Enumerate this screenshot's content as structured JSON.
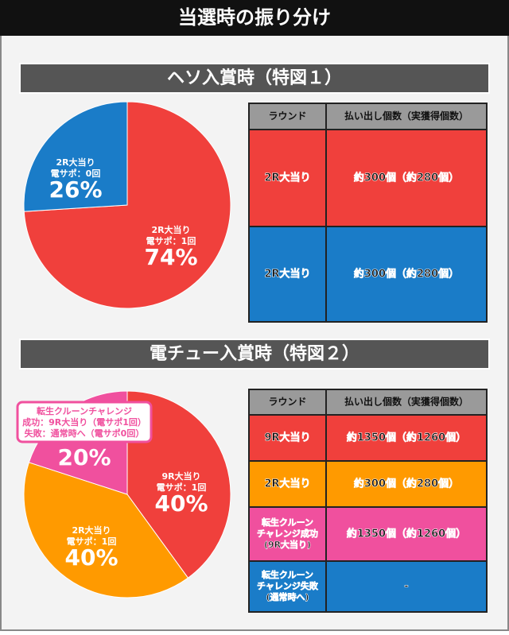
{
  "title": "当選時の振り分け",
  "chart_data": [
    {
      "type": "pie",
      "title": "ヘソ入賞時（特図１）",
      "categories": [
        [
          "2R大当り",
          "電サポ：1回"
        ],
        [
          "2R大当り",
          "電サポ：0回"
        ]
      ],
      "values": [
        74,
        26
      ],
      "value_labels": [
        "74%",
        "26%"
      ],
      "colors": [
        "#f0403c",
        "#1a7cc8"
      ]
    },
    {
      "type": "pie",
      "title": "電チュー入賞時（特図２）",
      "categories": [
        [
          "9R大当り",
          "電サポ：1回"
        ],
        [
          "2R大当り",
          "電サポ：1回"
        ],
        [
          "転生クルーンチャレンジ",
          "成功：9R大当り（電サポ1回）",
          "失敗：通常時へ（電サポ0回）"
        ]
      ],
      "values": [
        40,
        40,
        20
      ],
      "value_labels": [
        "40%",
        "40%",
        "20%"
      ],
      "colors": [
        "#f0403c",
        "#ff9a00",
        "#f0509e"
      ]
    }
  ],
  "tables": [
    {
      "header": [
        "ラウンド",
        "払い出し個数（実獲得個数）"
      ],
      "rows": [
        [
          [
            "2R大当り"
          ],
          "約300個（約280個）"
        ],
        [
          [
            "2R大当り"
          ],
          "約300個（約280個）"
        ]
      ],
      "row_colors": [
        "#f0403c",
        "#1a7cc8"
      ]
    },
    {
      "header": [
        "ラウンド",
        "払い出し個数（実獲得個数）"
      ],
      "rows": [
        [
          [
            "9R大当り"
          ],
          "約1350個（約1260個）"
        ],
        [
          [
            "2R大当り"
          ],
          "約300個（約280個）"
        ],
        [
          [
            "転生クルーン",
            "チャレンジ成功",
            "(9R大当り)"
          ],
          "約1350個（約1260個）"
        ],
        [
          [
            "転生クルーン",
            "チャレンジ失敗",
            "(通常時へ)"
          ],
          "-"
        ]
      ],
      "row_colors": [
        "#f0403c",
        "#ff9a00",
        "#f0509e",
        "#1a7cc8"
      ]
    }
  ]
}
